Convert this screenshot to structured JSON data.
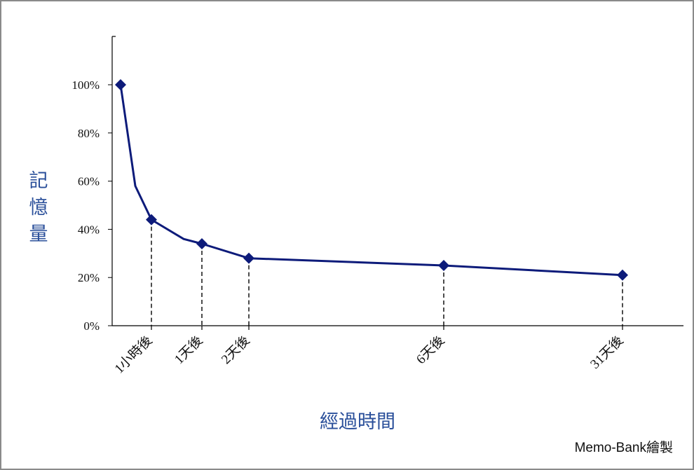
{
  "chart_data": {
    "type": "line",
    "ylabel": "記憶量",
    "xlabel": "經過時間",
    "ylim": [
      0,
      100
    ],
    "ytick_labels": [
      "0%",
      "20%",
      "40%",
      "60%",
      "80%",
      "100%"
    ],
    "ytick_values": [
      0,
      20,
      40,
      60,
      80,
      100
    ],
    "x_unit": "hours",
    "x_scale": "custom",
    "series": [
      {
        "color": "#0d1b7a",
        "points": [
          {
            "x": 0,
            "y": 100,
            "label": "",
            "marker": true
          },
          {
            "x": 0.4,
            "y": 58,
            "label": "",
            "marker": false
          },
          {
            "x": 1,
            "y": 44,
            "label": "1小時後",
            "marker": true
          },
          {
            "x": 10,
            "y": 36,
            "label": "",
            "marker": false
          },
          {
            "x": 24,
            "y": 34,
            "label": "1天後",
            "marker": true
          },
          {
            "x": 48,
            "y": 28,
            "label": "2天後",
            "marker": true
          },
          {
            "x": 144,
            "y": 25,
            "label": "6天後",
            "marker": true
          },
          {
            "x": 744,
            "y": 21,
            "label": "31天後",
            "marker": true
          }
        ]
      }
    ],
    "grid": false,
    "legend": "none"
  },
  "credit": "Memo-Bank繪製"
}
